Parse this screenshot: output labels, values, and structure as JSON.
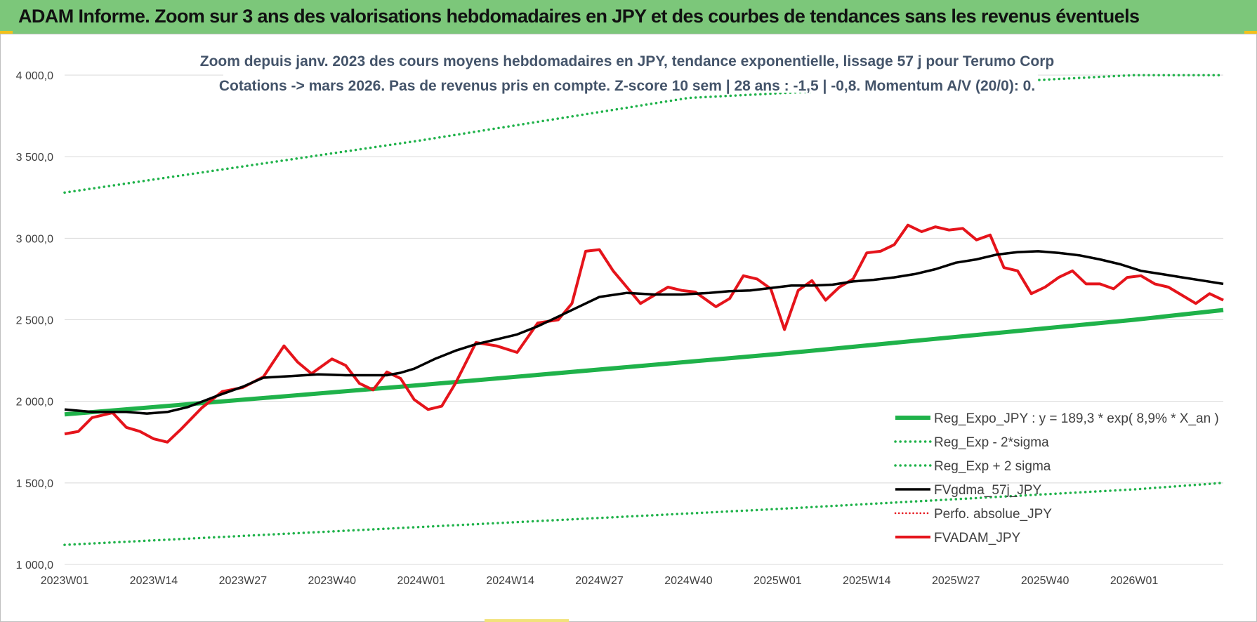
{
  "header": {
    "title": "ADAM Informe. Zoom sur 3 ans des valorisations hebdomadaires en JPY et des courbes de tendances sans les revenus éventuels"
  },
  "colors": {
    "header_bg": "#7cc77a",
    "trend_green": "#1fb24a",
    "band_green": "#1fb24a",
    "smooth_black": "#000000",
    "price_red": "#e5141b",
    "perf_red": "#e5141b"
  },
  "chart_data": {
    "type": "line",
    "title_line1": "Zoom depuis janv. 2023 des cours moyens hebdomadaires en JPY, tendance exponentielle, lissage 57 j pour Terumo Corp",
    "title_line2": "Cotations -> mars 2026. Pas de revenus pris en compte. Z-score 10 sem | 28 ans : -1,5 | -0,8. Momentum A/V (20/0): 0.",
    "ylim": [
      1000,
      4000
    ],
    "y_ticks": [
      1000,
      1500,
      2000,
      2500,
      3000,
      3500,
      4000
    ],
    "y_tick_labels": [
      "1 000,0",
      "1 500,0",
      "2 000,0",
      "2 500,0",
      "3 000,0",
      "3 500,0",
      "4 000,0"
    ],
    "x_ticks": [
      {
        "week": 1,
        "label": "2023W01"
      },
      {
        "week": 14,
        "label": "2023W14"
      },
      {
        "week": 27,
        "label": "2023W27"
      },
      {
        "week": 40,
        "label": "2023W40"
      },
      {
        "week": 53,
        "label": "2024W01"
      },
      {
        "week": 66,
        "label": "2024W14"
      },
      {
        "week": 79,
        "label": "2024W27"
      },
      {
        "week": 92,
        "label": "2024W40"
      },
      {
        "week": 105,
        "label": "2025W01"
      },
      {
        "week": 118,
        "label": "2025W14"
      },
      {
        "week": 131,
        "label": "2025W27"
      },
      {
        "week": 144,
        "label": "2025W40"
      },
      {
        "week": 157,
        "label": "2026W01"
      }
    ],
    "xlim": [
      1,
      170
    ],
    "legend": [
      "Reg_Expo_JPY : y = 189,3 * exp( 8,9% *  X_an )",
      "Reg_Exp - 2*sigma",
      "Reg_Exp + 2 sigma",
      "FVgdma_57j_JPY",
      "Perfo. absolue_JPY",
      "FVADAM_JPY"
    ],
    "legend_position": "bottom-right",
    "grid": "horizontal",
    "series": [
      {
        "name": "Reg_Expo_JPY : y = 189,3 * exp( 8,9% *  X_an )",
        "style": "solid-thick",
        "points": [
          [
            1,
            1920
          ],
          [
            53,
            2100
          ],
          [
            105,
            2290
          ],
          [
            157,
            2500
          ],
          [
            170,
            2560
          ]
        ]
      },
      {
        "name": "Reg_Exp - 2*sigma",
        "style": "dotted",
        "points": [
          [
            1,
            1120
          ],
          [
            53,
            1230
          ],
          [
            105,
            1340
          ],
          [
            157,
            1460
          ],
          [
            170,
            1500
          ]
        ]
      },
      {
        "name": "Reg_Exp + 2 sigma",
        "style": "dotted",
        "points": [
          [
            1,
            3280
          ],
          [
            53,
            3600
          ],
          [
            92,
            3860
          ],
          [
            157,
            4000
          ],
          [
            170,
            4000
          ]
        ]
      },
      {
        "name": "FVgdma_57j_JPY",
        "style": "solid-black",
        "points": [
          [
            1,
            1950
          ],
          [
            5,
            1935
          ],
          [
            10,
            1935
          ],
          [
            13,
            1925
          ],
          [
            16,
            1935
          ],
          [
            19,
            1965
          ],
          [
            23,
            2030
          ],
          [
            27,
            2090
          ],
          [
            30,
            2145
          ],
          [
            34,
            2155
          ],
          [
            38,
            2165
          ],
          [
            42,
            2160
          ],
          [
            45,
            2160
          ],
          [
            48,
            2160
          ],
          [
            50,
            2175
          ],
          [
            52,
            2200
          ],
          [
            55,
            2260
          ],
          [
            58,
            2310
          ],
          [
            61,
            2350
          ],
          [
            64,
            2380
          ],
          [
            67,
            2410
          ],
          [
            70,
            2460
          ],
          [
            73,
            2520
          ],
          [
            76,
            2580
          ],
          [
            79,
            2640
          ],
          [
            83,
            2665
          ],
          [
            87,
            2655
          ],
          [
            91,
            2655
          ],
          [
            95,
            2665
          ],
          [
            98,
            2675
          ],
          [
            101,
            2680
          ],
          [
            104,
            2695
          ],
          [
            107,
            2710
          ],
          [
            110,
            2710
          ],
          [
            113,
            2715
          ],
          [
            116,
            2735
          ],
          [
            119,
            2745
          ],
          [
            122,
            2760
          ],
          [
            125,
            2780
          ],
          [
            128,
            2810
          ],
          [
            131,
            2850
          ],
          [
            134,
            2870
          ],
          [
            137,
            2900
          ],
          [
            140,
            2915
          ],
          [
            143,
            2920
          ],
          [
            146,
            2910
          ],
          [
            149,
            2895
          ],
          [
            152,
            2870
          ],
          [
            155,
            2840
          ],
          [
            158,
            2800
          ],
          [
            161,
            2780
          ],
          [
            164,
            2760
          ],
          [
            167,
            2740
          ],
          [
            170,
            2720
          ]
        ]
      },
      {
        "name": "FVADAM_JPY",
        "style": "solid-red",
        "points": [
          [
            1,
            1800
          ],
          [
            3,
            1815
          ],
          [
            5,
            1900
          ],
          [
            8,
            1930
          ],
          [
            10,
            1840
          ],
          [
            12,
            1815
          ],
          [
            14,
            1770
          ],
          [
            16,
            1750
          ],
          [
            18,
            1830
          ],
          [
            21,
            1960
          ],
          [
            24,
            2060
          ],
          [
            27,
            2085
          ],
          [
            30,
            2150
          ],
          [
            33,
            2340
          ],
          [
            35,
            2240
          ],
          [
            37,
            2170
          ],
          [
            40,
            2260
          ],
          [
            42,
            2220
          ],
          [
            44,
            2110
          ],
          [
            46,
            2070
          ],
          [
            48,
            2180
          ],
          [
            50,
            2140
          ],
          [
            52,
            2010
          ],
          [
            54,
            1950
          ],
          [
            56,
            1970
          ],
          [
            58,
            2110
          ],
          [
            61,
            2360
          ],
          [
            64,
            2340
          ],
          [
            67,
            2300
          ],
          [
            70,
            2480
          ],
          [
            73,
            2500
          ],
          [
            75,
            2600
          ],
          [
            77,
            2920
          ],
          [
            79,
            2930
          ],
          [
            81,
            2800
          ],
          [
            83,
            2700
          ],
          [
            85,
            2600
          ],
          [
            87,
            2650
          ],
          [
            89,
            2700
          ],
          [
            91,
            2680
          ],
          [
            93,
            2670
          ],
          [
            96,
            2580
          ],
          [
            98,
            2630
          ],
          [
            100,
            2770
          ],
          [
            102,
            2750
          ],
          [
            104,
            2690
          ],
          [
            106,
            2440
          ],
          [
            108,
            2680
          ],
          [
            110,
            2740
          ],
          [
            112,
            2620
          ],
          [
            114,
            2700
          ],
          [
            116,
            2750
          ],
          [
            118,
            2910
          ],
          [
            120,
            2920
          ],
          [
            122,
            2960
          ],
          [
            124,
            3080
          ],
          [
            126,
            3040
          ],
          [
            128,
            3070
          ],
          [
            130,
            3050
          ],
          [
            132,
            3060
          ],
          [
            134,
            2990
          ],
          [
            136,
            3020
          ],
          [
            138,
            2820
          ],
          [
            140,
            2800
          ],
          [
            142,
            2660
          ],
          [
            144,
            2700
          ],
          [
            146,
            2760
          ],
          [
            148,
            2800
          ],
          [
            150,
            2720
          ],
          [
            152,
            2720
          ],
          [
            154,
            2690
          ],
          [
            156,
            2760
          ],
          [
            158,
            2770
          ],
          [
            160,
            2720
          ],
          [
            162,
            2700
          ],
          [
            164,
            2650
          ],
          [
            166,
            2600
          ],
          [
            168,
            2660
          ],
          [
            170,
            2620
          ]
        ]
      }
    ]
  }
}
